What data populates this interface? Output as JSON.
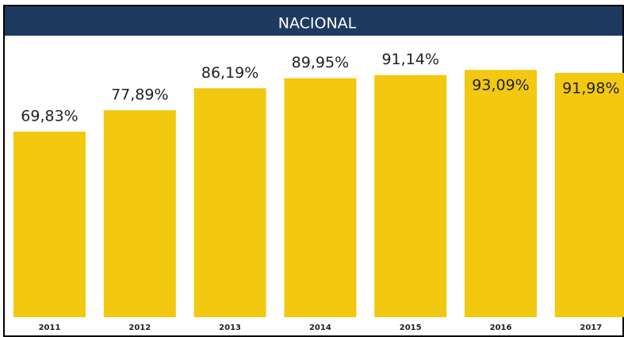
{
  "chart_data": {
    "type": "bar",
    "title": "NACIONAL",
    "categories": [
      "2011",
      "2012",
      "2013",
      "2014",
      "2015",
      "2016",
      "2017"
    ],
    "values": [
      69.83,
      77.89,
      86.19,
      89.95,
      91.14,
      93.09,
      91.98
    ],
    "value_labels": [
      "69,83%",
      "77,89%",
      "86,19%",
      "89,95%",
      "91,14%",
      "93,09%",
      "91,98%"
    ],
    "color": "#f2c811"
  }
}
